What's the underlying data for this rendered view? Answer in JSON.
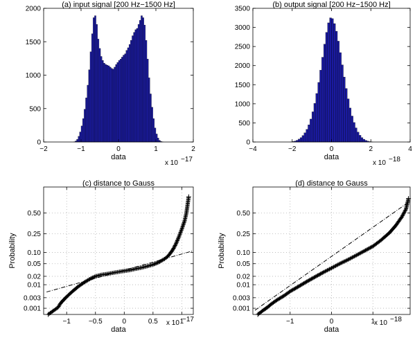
{
  "chart_data": [
    {
      "type": "bar",
      "subtype": "histogram",
      "title": "(a) input signal [200 Hz−1500 Hz]",
      "xlabel": "data",
      "ylabel": "",
      "x_exponent_base": "x 10",
      "x_exponent_power": "−17",
      "xlim": [
        -2,
        2
      ],
      "ylim": [
        0,
        2000
      ],
      "xticks": [
        -2,
        -1,
        0,
        1,
        2
      ],
      "xtick_labels": [
        "−2",
        "−1",
        "0",
        "1",
        "2"
      ],
      "yticks": [
        0,
        500,
        1000,
        1500,
        2000
      ],
      "ytick_labels": [
        "0",
        "500",
        "1000",
        "1500",
        "2000"
      ],
      "bar_color": "#1a1aa0",
      "bar_edge": "#000000",
      "bin_width": 0.04,
      "bin_centers": [
        -1.18,
        -1.14,
        -1.1,
        -1.06,
        -1.02,
        -0.98,
        -0.94,
        -0.9,
        -0.86,
        -0.82,
        -0.78,
        -0.74,
        -0.7,
        -0.66,
        -0.62,
        -0.58,
        -0.54,
        -0.5,
        -0.46,
        -0.42,
        -0.38,
        -0.34,
        -0.3,
        -0.26,
        -0.22,
        -0.18,
        -0.14,
        -0.1,
        -0.06,
        -0.02,
        0.02,
        0.06,
        0.1,
        0.14,
        0.18,
        0.22,
        0.26,
        0.3,
        0.34,
        0.38,
        0.42,
        0.46,
        0.5,
        0.54,
        0.58,
        0.62,
        0.66,
        0.7,
        0.74,
        0.78,
        0.82,
        0.86,
        0.9,
        0.94,
        0.98,
        1.02,
        1.06,
        1.1,
        1.14,
        1.18
      ],
      "values": [
        3,
        15,
        40,
        85,
        150,
        240,
        350,
        490,
        660,
        850,
        1080,
        1350,
        1620,
        1860,
        1890,
        1760,
        1540,
        1400,
        1280,
        1220,
        1180,
        1160,
        1150,
        1140,
        1120,
        1100,
        1090,
        1120,
        1160,
        1190,
        1220,
        1240,
        1270,
        1300,
        1320,
        1370,
        1410,
        1460,
        1520,
        1590,
        1640,
        1680,
        1700,
        1760,
        1820,
        1890,
        1860,
        1750,
        1520,
        1240,
        960,
        720,
        520,
        350,
        210,
        120,
        60,
        25,
        8,
        2
      ]
    },
    {
      "type": "bar",
      "subtype": "histogram",
      "title": "(b) output signal [200 Hz−1500 Hz]",
      "xlabel": "data",
      "ylabel": "",
      "x_exponent_base": "x 10",
      "x_exponent_power": "−18",
      "xlim": [
        -4,
        4
      ],
      "ylim": [
        0,
        3500
      ],
      "xticks": [
        -4,
        -2,
        0,
        2,
        4
      ],
      "xtick_labels": [
        "−4",
        "−2",
        "0",
        "2",
        "4"
      ],
      "yticks": [
        0,
        500,
        1000,
        1500,
        2000,
        2500,
        3000,
        3500
      ],
      "ytick_labels": [
        "0",
        "500",
        "1000",
        "1500",
        "2000",
        "2500",
        "3000",
        "3500"
      ],
      "bar_color": "#1a1aa0",
      "bar_edge": "#000000",
      "bin_width": 0.1,
      "bin_centers": [
        -2.05,
        -1.95,
        -1.85,
        -1.75,
        -1.65,
        -1.55,
        -1.45,
        -1.35,
        -1.25,
        -1.15,
        -1.05,
        -0.95,
        -0.85,
        -0.75,
        -0.65,
        -0.55,
        -0.45,
        -0.35,
        -0.25,
        -0.15,
        -0.05,
        0.05,
        0.15,
        0.25,
        0.35,
        0.45,
        0.55,
        0.65,
        0.75,
        0.85,
        0.95,
        1.05,
        1.15,
        1.25,
        1.35,
        1.45,
        1.55,
        1.65,
        1.75,
        1.85,
        1.95,
        2.05
      ],
      "values": [
        5,
        12,
        25,
        45,
        75,
        115,
        170,
        240,
        330,
        450,
        600,
        790,
        1010,
        1270,
        1560,
        1880,
        2220,
        2560,
        2870,
        3120,
        3250,
        3230,
        3100,
        2900,
        2640,
        2340,
        2020,
        1700,
        1400,
        1130,
        890,
        680,
        510,
        370,
        260,
        175,
        115,
        72,
        42,
        22,
        10,
        4
      ]
    },
    {
      "type": "scatter",
      "subtype": "normal-probability-plot",
      "title": "(c) distance to Gauss",
      "xlabel": "data",
      "ylabel": "Probability",
      "x_exponent_base": "x 10",
      "x_exponent_power": "−17",
      "xlim": [
        -1.4,
        1.2
      ],
      "ylim": [
        0.0005,
        0.8
      ],
      "y_scale": "normal-probability",
      "grid": true,
      "xticks": [
        -1,
        -0.5,
        0,
        0.5,
        1
      ],
      "xtick_labels": [
        "−1",
        "−0.5",
        "0",
        "0.5",
        "1"
      ],
      "yticks": [
        0.001,
        0.003,
        0.01,
        0.02,
        0.05,
        0.1,
        0.25,
        0.5
      ],
      "ytick_labels": [
        "0.001",
        "0.003",
        "0.01",
        "0.02",
        "0.05",
        "0.10",
        "0.25",
        "0.50"
      ],
      "series": [
        {
          "marker": "+",
          "color": "#000000",
          "x": [
            -1.32,
            -1.22,
            -1.15,
            -1.1,
            -1.0,
            -0.9,
            -0.8,
            -0.7,
            -0.6,
            -0.55,
            -0.5,
            -0.4,
            -0.3,
            -0.2,
            -0.1,
            0.0,
            0.1,
            0.2,
            0.3,
            0.4,
            0.5,
            0.6,
            0.7,
            0.75,
            0.8,
            0.85,
            0.9,
            0.95,
            1.0,
            1.05,
            1.08,
            1.12
          ],
          "y": [
            0.0005,
            0.0008,
            0.0011,
            0.0018,
            0.0033,
            0.0055,
            0.0085,
            0.012,
            0.016,
            0.018,
            0.02,
            0.0225,
            0.024,
            0.026,
            0.028,
            0.03,
            0.032,
            0.035,
            0.038,
            0.042,
            0.047,
            0.055,
            0.068,
            0.078,
            0.095,
            0.12,
            0.16,
            0.22,
            0.3,
            0.4,
            0.5,
            0.7
          ]
        },
        {
          "name": "",
          "style": "dash-dot",
          "color": "#000000",
          "x": [
            -1.35,
            1.2
          ],
          "y": [
            0.0052,
            0.11
          ]
        }
      ]
    },
    {
      "type": "scatter",
      "subtype": "normal-probability-plot",
      "title": "(d) distance to Gauss",
      "xlabel": "data",
      "ylabel": "Probability",
      "x_exponent_base": "x 10",
      "x_exponent_power": "−18",
      "xlim": [
        -1.9,
        1.9
      ],
      "ylim": [
        0.0005,
        0.8
      ],
      "y_scale": "normal-probability",
      "grid": true,
      "xticks": [
        -1,
        0,
        1
      ],
      "xtick_labels": [
        "−1",
        "0",
        "1"
      ],
      "yticks": [
        0.001,
        0.003,
        0.01,
        0.02,
        0.05,
        0.1,
        0.25,
        0.5
      ],
      "ytick_labels": [
        "0.001",
        "0.003",
        "0.01",
        "0.02",
        "0.05",
        "0.10",
        "0.25",
        "0.50"
      ],
      "series": [
        {
          "marker": "+",
          "color": "#000000",
          "x": [
            -1.78,
            -1.65,
            -1.55,
            -1.45,
            -1.3,
            -1.15,
            -1.0,
            -0.8,
            -0.6,
            -0.4,
            -0.2,
            0.0,
            0.2,
            0.4,
            0.6,
            0.8,
            1.0,
            1.2,
            1.4,
            1.55,
            1.7,
            1.8,
            1.86
          ],
          "y": [
            0.0005,
            0.0008,
            0.0011,
            0.0016,
            0.0025,
            0.0036,
            0.0055,
            0.0085,
            0.013,
            0.019,
            0.027,
            0.037,
            0.05,
            0.065,
            0.085,
            0.11,
            0.14,
            0.19,
            0.26,
            0.34,
            0.45,
            0.55,
            0.68
          ]
        },
        {
          "name": "",
          "style": "dash-dot",
          "color": "#000000",
          "x": [
            -1.85,
            1.9
          ],
          "y": [
            0.0008,
            0.65
          ]
        }
      ]
    }
  ]
}
